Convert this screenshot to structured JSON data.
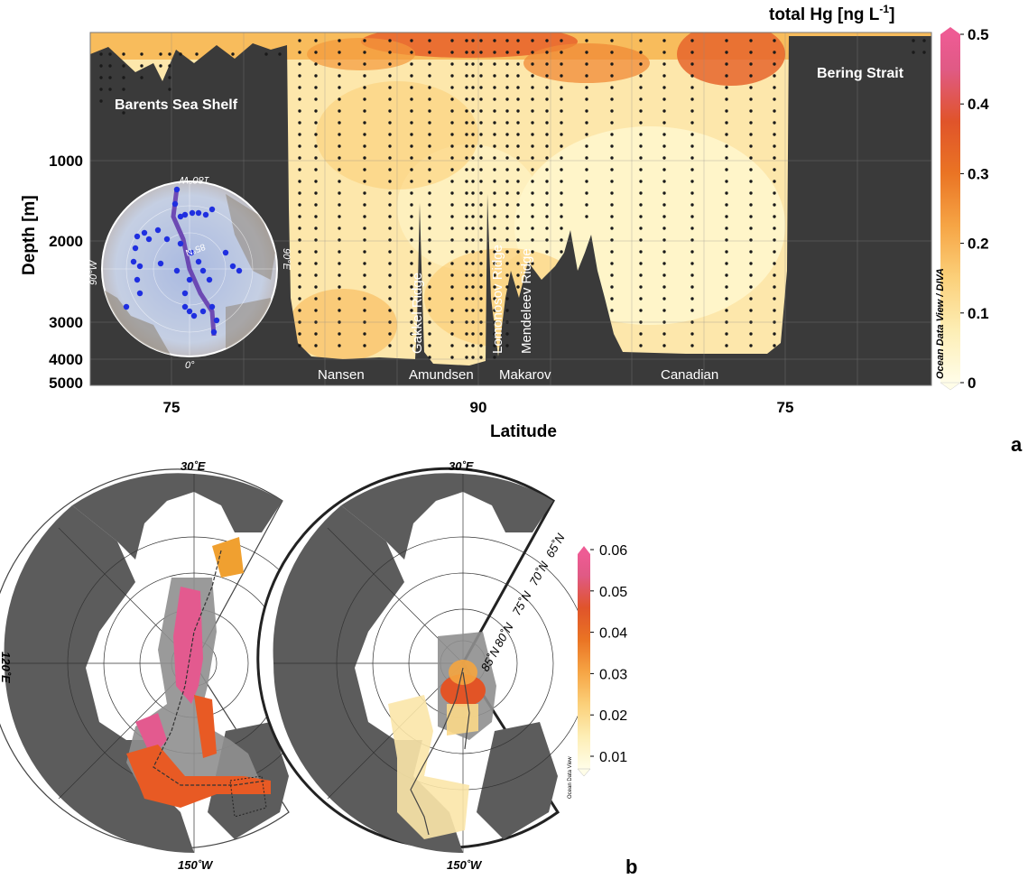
{
  "panel_a": {
    "letter": "a",
    "colorbar_title": "total Hg [ng L",
    "colorbar_title_sup": "-1",
    "colorbar_title_end": "]",
    "credit": "Ocean Data View / DIVA",
    "bathy_labels": [
      "Barents Sea Shelf",
      "Bering Strait"
    ],
    "ridge_labels": [
      "Gakkel Ridge",
      "Lomonosov Ridge",
      "Mendeleev Ridge"
    ],
    "basin_labels": [
      "Nansen",
      "Amundsen",
      "Makarov",
      "Canadian"
    ],
    "inset": {
      "top": "180°W",
      "left": "90°W",
      "right": "90°E",
      "bottom": "0°",
      "center": "85°N"
    }
  },
  "panel_b": {
    "letter": "b",
    "left_map": {
      "top": "30˚E",
      "left": "120˚E",
      "bottom": "150˚W"
    },
    "right_map": {
      "top": "30˚E",
      "bottom": "150˚W",
      "lat_labels": [
        "65˚N",
        "70˚N",
        "75˚N",
        "80˚N",
        "85˚N"
      ]
    },
    "credit": "Ocean Data View"
  },
  "chart_data": [
    {
      "type": "heatmap",
      "title": "",
      "xlabel": "Latitude",
      "ylabel": "Depth [m]",
      "x_ticks": [
        "75",
        "90",
        "75"
      ],
      "y_ticks": [
        "1000",
        "2000",
        "3000",
        "4000",
        "5000"
      ],
      "ylim": [
        5000,
        0
      ],
      "colorbar": {
        "label": "total Hg [ng L-1]",
        "ticks": [
          "0",
          "0.1",
          "0.2",
          "0.3",
          "0.4",
          "0.5"
        ],
        "range": [
          0,
          0.5
        ],
        "colors": [
          "#fffde8",
          "#fde9a8",
          "#fbc060",
          "#f39a36",
          "#e25c22",
          "#df5a8a",
          "#ee5b94"
        ]
      },
      "colors": {
        "bathymetry": "#3a3a3a",
        "stations": "#111111"
      }
    },
    {
      "type": "heatmap",
      "title": "",
      "maps": 2,
      "colorbar": {
        "ticks": [
          "0.01",
          "0.02",
          "0.03",
          "0.04",
          "0.05",
          "0.06"
        ],
        "range": [
          0,
          0.06
        ],
        "colors": [
          "#fffde8",
          "#fde9a8",
          "#fbc060",
          "#f39a36",
          "#e25c22",
          "#df5a8a",
          "#ee5b94"
        ]
      },
      "colors": {
        "land": "#5c5c5c",
        "ocean": "#ffffff"
      }
    }
  ]
}
